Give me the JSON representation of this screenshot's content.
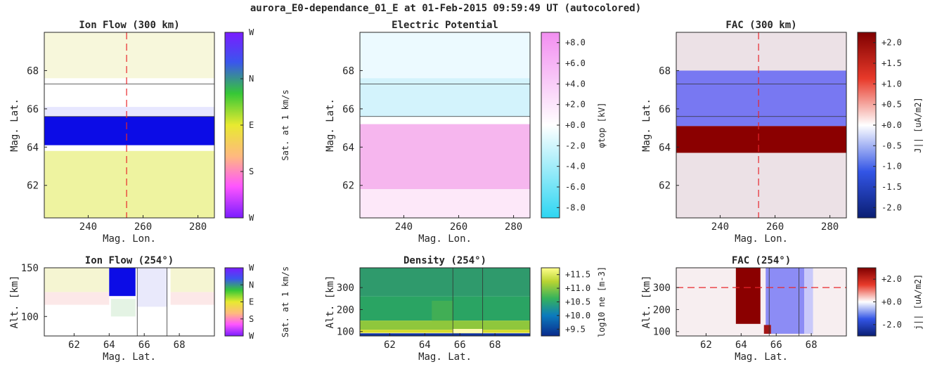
{
  "figure": {
    "title": "aurora_E0-dependance_01_E at 01-Feb-2015 09:59:49 UT (autocolored)",
    "colors": {
      "flow_cyclic": [
        "#7a1cff",
        "#ff55ff",
        "#ffb880",
        "#e8ea30",
        "#36c836",
        "#3b55ee",
        "#7a1cff"
      ],
      "potential": [
        "#2ed6f2",
        "#ffffff",
        "#f28ef0"
      ],
      "fac": [
        "#0a1e73",
        "#3355e6",
        "#ffffff",
        "#e83a2a",
        "#7f0000"
      ],
      "density": [
        "#0a2a8c",
        "#0c7bbd",
        "#35b25c",
        "#b9d432",
        "#ffff8c"
      ],
      "marker": "#e8262b"
    }
  },
  "chart_data": [
    {
      "id": "ion_flow_map",
      "type": "heatmap",
      "title": "Ion Flow (300 km)",
      "xlabel": "Mag. Lon.",
      "ylabel": "Mag. Lat.",
      "xlim": [
        224,
        286
      ],
      "ylim": [
        60.3,
        70
      ],
      "xticks": [
        240,
        260,
        280
      ],
      "yticks": [
        62,
        64,
        66,
        68
      ],
      "hlines": [
        65.6,
        67.3
      ],
      "vline": 254,
      "bands": [
        {
          "y0": 67.0,
          "y1": 70.0,
          "color": "#f3f4cc",
          "opacity": 0.7
        },
        {
          "y0": 66.0,
          "y1": 67.6,
          "color": "#ffffff",
          "opacity": 1
        },
        {
          "y0": 65.5,
          "y1": 66.1,
          "color": "#e7e7ff",
          "opacity": 1
        },
        {
          "y0": 64.0,
          "y1": 65.6,
          "color": "#0c0ce6",
          "opacity": 1
        },
        {
          "y0": 63.7,
          "y1": 64.1,
          "color": "#ffffff",
          "opacity": 1
        },
        {
          "y0": 60.3,
          "y1": 63.8,
          "color": "#eef3a0",
          "opacity": 1
        }
      ],
      "colorbar": {
        "label": "Sat. at 1 km/s",
        "ticks": [
          "W",
          "N",
          "E",
          "S",
          "W"
        ]
      }
    },
    {
      "id": "potential_map",
      "type": "heatmap",
      "title": "Electric Potential",
      "xlabel": "Mag. Lon.",
      "ylabel": "Mag. Lat.",
      "xlim": [
        224,
        286
      ],
      "ylim": [
        60.3,
        70
      ],
      "xticks": [
        240,
        260,
        280
      ],
      "yticks": [
        62,
        64,
        66,
        68
      ],
      "hlines": [
        65.6,
        67.3
      ],
      "bands": [
        {
          "y0": 67.0,
          "y1": 70.0,
          "color": "#ecfaff",
          "opacity": 1
        },
        {
          "y0": 65.6,
          "y1": 67.6,
          "color": "#d3f3fc",
          "opacity": 1
        },
        {
          "y0": 65.2,
          "y1": 65.6,
          "color": "#ffffff",
          "opacity": 1
        },
        {
          "y0": 61.8,
          "y1": 65.2,
          "color": "#f6b6ee",
          "opacity": 1
        },
        {
          "y0": 60.3,
          "y1": 61.8,
          "color": "#fde8f9",
          "opacity": 1
        }
      ],
      "colorbar": {
        "label": "φtop [kV]",
        "ticks": [
          "+8.0",
          "+6.0",
          "+4.0",
          "+2.0",
          "+0.0",
          "-2.0",
          "-4.0",
          "-6.0",
          "-8.0"
        ]
      }
    },
    {
      "id": "fac_map",
      "type": "heatmap",
      "title": "FAC (300 km)",
      "xlabel": "Mag. Lon.",
      "ylabel": "Mag. Lat.",
      "xlim": [
        224,
        286
      ],
      "ylim": [
        60.3,
        70
      ],
      "xticks": [
        240,
        260,
        280
      ],
      "yticks": [
        62,
        64,
        66,
        68
      ],
      "hlines": [
        65.6,
        67.3
      ],
      "vline": 254,
      "bands": [
        {
          "y0": 68.0,
          "y1": 70.0,
          "color": "#ece1e6",
          "opacity": 1
        },
        {
          "y0": 65.1,
          "y1": 68.0,
          "color": "#7878f2",
          "opacity": 1
        },
        {
          "y0": 63.7,
          "y1": 65.1,
          "color": "#8b0000",
          "opacity": 1
        },
        {
          "y0": 60.3,
          "y1": 63.7,
          "color": "#ece1e6",
          "opacity": 1
        }
      ],
      "colorbar": {
        "label": "J|| [uA/m2]",
        "ticks": [
          "+2.0",
          "+1.5",
          "+1.0",
          "+0.5",
          "+0.0",
          "-0.5",
          "-1.0",
          "-1.5",
          "-2.0"
        ]
      }
    },
    {
      "id": "ion_flow_alt",
      "type": "heatmap",
      "title": "Ion Flow (254°)",
      "xlabel": "Mag. Lat.",
      "ylabel": "Alt. [km]",
      "xlim": [
        60.3,
        70
      ],
      "ylim": [
        80,
        150
      ],
      "xticks": [
        62,
        64,
        66,
        68
      ],
      "yticks": [
        100,
        150
      ],
      "vlines": [
        65.6,
        67.3
      ],
      "rects": [
        {
          "x0": 60.3,
          "x1": 64.0,
          "y0": 125,
          "y1": 150,
          "color": "#f5f5d2"
        },
        {
          "x0": 60.3,
          "x1": 64.0,
          "y0": 112,
          "y1": 125,
          "color": "#fce8e8"
        },
        {
          "x0": 67.5,
          "x1": 70.0,
          "y0": 125,
          "y1": 150,
          "color": "#f5f5d2"
        },
        {
          "x0": 67.5,
          "x1": 70.0,
          "y0": 112,
          "y1": 125,
          "color": "#fce8e8"
        },
        {
          "x0": 65.6,
          "x1": 67.3,
          "y0": 110,
          "y1": 150,
          "color": "#e9e9fb"
        },
        {
          "x0": 64.1,
          "x1": 65.5,
          "y0": 100,
          "y1": 118,
          "color": "#e4f3e4"
        },
        {
          "x0": 64.0,
          "x1": 65.5,
          "y0": 121,
          "y1": 150,
          "color": "#0c0ce6"
        }
      ],
      "colorbar": {
        "label": "Sat. at 1 km/s",
        "ticks": [
          "W",
          "N",
          "E",
          "S",
          "W"
        ]
      }
    },
    {
      "id": "density_alt",
      "type": "heatmap",
      "title": "Density (254°)",
      "xlabel": "Mag. Lat.",
      "ylabel": "Alt. [km]",
      "xlim": [
        60.3,
        70
      ],
      "ylim": [
        80,
        390
      ],
      "xticks": [
        62,
        64,
        66,
        68
      ],
      "yticks": [
        100,
        200,
        300
      ],
      "vlines": [
        65.6,
        67.3
      ],
      "rects": [
        {
          "x0": 60.3,
          "x1": 70.0,
          "y0": 260,
          "y1": 390,
          "color": "#2f9a6c"
        },
        {
          "x0": 60.3,
          "x1": 70.0,
          "y0": 150,
          "y1": 260,
          "color": "#2aa463"
        },
        {
          "x0": 64.4,
          "x1": 65.6,
          "y0": 110,
          "y1": 240,
          "color": "#41ae55"
        },
        {
          "x0": 60.3,
          "x1": 70.0,
          "y0": 108,
          "y1": 150,
          "color": "#8fc73c"
        },
        {
          "x0": 60.3,
          "x1": 70.0,
          "y0": 94,
          "y1": 108,
          "color": "#d7dc2a"
        },
        {
          "x0": 65.6,
          "x1": 67.3,
          "y0": 92,
          "y1": 112,
          "color": "#fffbb0"
        },
        {
          "x0": 60.3,
          "x1": 70.0,
          "y0": 80,
          "y1": 92,
          "color": "#12339b"
        }
      ],
      "colorbar": {
        "label": "log10 ne [m-3]",
        "ticks": [
          "+11.5",
          "+11.0",
          "+10.5",
          "+10.0",
          "+9.5"
        ]
      }
    },
    {
      "id": "fac_alt",
      "type": "heatmap",
      "title": "FAC (254°)",
      "xlabel": "Mag. Lat.",
      "ylabel": "Alt. [km]",
      "xlim": [
        60.3,
        70
      ],
      "ylim": [
        80,
        390
      ],
      "xticks": [
        62,
        64,
        66,
        68
      ],
      "yticks": [
        100,
        200,
        300
      ],
      "vlines": [
        65.6,
        67.3
      ],
      "hline_marker": 300,
      "rects": [
        {
          "x0": 60.3,
          "x1": 70.0,
          "y0": 80,
          "y1": 390,
          "color": "#f7eef0"
        },
        {
          "x0": 65.4,
          "x1": 67.6,
          "y0": 90,
          "y1": 390,
          "color": "#8c8cf5"
        },
        {
          "x0": 67.6,
          "x1": 68.1,
          "y0": 90,
          "y1": 390,
          "color": "#c9c9fa"
        },
        {
          "x0": 63.7,
          "x1": 65.1,
          "y0": 135,
          "y1": 390,
          "color": "#8b0000"
        },
        {
          "x0": 65.3,
          "x1": 65.7,
          "y0": 90,
          "y1": 130,
          "color": "#a31515"
        }
      ],
      "colorbar": {
        "label": "j|| [uA/m2]",
        "ticks": [
          "+2.0",
          "+0.0",
          "-2.0"
        ]
      }
    }
  ]
}
